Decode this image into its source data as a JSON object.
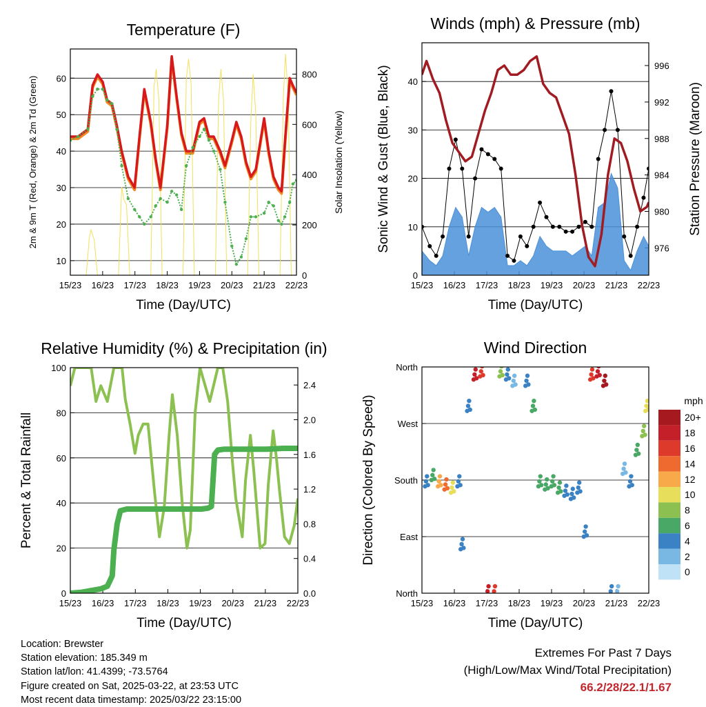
{
  "panels": {
    "temperature": {
      "title": "Temperature (F)",
      "ylabel_left": "2m & 9m T (Red, Orange) & 2m Td (Green)",
      "ylabel_right": "Solar Insolation (Yellow)",
      "xlabel": "Time (Day/UTC)",
      "yticks_left": [
        "10",
        "20",
        "30",
        "40",
        "50",
        "60"
      ],
      "yticks_right": [
        "0",
        "200",
        "400",
        "600",
        "800"
      ]
    },
    "winds": {
      "title": "Winds (mph) & Pressure (mb)",
      "ylabel_left": "Sonic Wind & Gust (Blue, Black)",
      "ylabel_right": "Station Pressure (Maroon)",
      "xlabel": "Time (Day/UTC)",
      "yticks_left": [
        "0",
        "10",
        "20",
        "30",
        "40"
      ],
      "yticks_right": [
        "976",
        "980",
        "984",
        "988",
        "992",
        "996"
      ]
    },
    "humidity": {
      "title": "Relative Humidity (%) & Precipitation (in)",
      "ylabel_left": "Percent & Total Rainfall",
      "xlabel": "Time (Day/UTC)",
      "yticks_left": [
        "0",
        "20",
        "40",
        "60",
        "80",
        "100"
      ],
      "yticks_right": [
        "0.0",
        "0.4",
        "0.8",
        "1.2",
        "1.6",
        "2.0",
        "2.4"
      ]
    },
    "direction": {
      "title": "Wind Direction",
      "ylabel_left": "Direction (Colored By Speed)",
      "xlabel": "Time (Day/UTC)",
      "yticks_left": [
        "North",
        "East",
        "South",
        "West",
        "North"
      ]
    }
  },
  "xticks": [
    "15/23",
    "16/23",
    "17/23",
    "18/23",
    "19/23",
    "20/23",
    "21/23",
    "22/23"
  ],
  "colorbar": {
    "unit": "mph",
    "labels": [
      "20+",
      "18",
      "16",
      "14",
      "12",
      "10",
      "8",
      "6",
      "4",
      "2",
      "0"
    ],
    "colors": [
      "#a6191e",
      "#c4202a",
      "#dd3a2b",
      "#ef6a2e",
      "#f8a94a",
      "#e7de5c",
      "#8cc152",
      "#4aa866",
      "#3a82c4",
      "#7ab8e4",
      "#bfe2f6"
    ]
  },
  "info": {
    "location": "Location: Brewster",
    "elevation": "Station elevation: 185.349 m",
    "latlon": "Station lat/lon: 41.4399; -73.5764",
    "created": "Figure created on Sat, 2025-03-22, at 23:53 UTC",
    "recent": "Most recent data timestamp: 2025/03/22 23:15:00"
  },
  "extremes": {
    "title": "Extremes For Past 7 Days",
    "subtitle": "(High/Low/Max Wind/Total Precipitation)",
    "values": "66.2/28/22.1/1.67"
  },
  "chart_data": [
    {
      "type": "line",
      "title": "Temperature (F)",
      "xlabel": "Time (Day/UTC)",
      "ylabel": "2m & 9m T (Red, Orange) & 2m Td (Green)",
      "y2label": "Solar Insolation (Yellow)",
      "x_range_days": [
        15.96,
        22.96
      ],
      "ylim": [
        6,
        68
      ],
      "y2lim": [
        0,
        900
      ],
      "colors": {
        "t2m": "#d7191c",
        "t9m": "#f08a24",
        "td": "#4caf50",
        "solar": "#f2e05a"
      },
      "series": [
        {
          "name": "2m T",
          "x": [
            15.96,
            16.2,
            16.5,
            16.65,
            16.8,
            16.96,
            17.1,
            17.25,
            17.4,
            17.55,
            17.75,
            17.95,
            18.1,
            18.25,
            18.45,
            18.6,
            18.75,
            18.96,
            19.1,
            19.25,
            19.4,
            19.55,
            19.75,
            19.96,
            20.1,
            20.25,
            20.4,
            20.6,
            20.75,
            20.96,
            21.1,
            21.25,
            21.4,
            21.55,
            21.7,
            21.96,
            22.1,
            22.25,
            22.4,
            22.5,
            22.6,
            22.75,
            22.85,
            22.96
          ],
          "y": [
            44,
            44,
            46,
            58,
            61,
            59,
            54,
            53,
            47,
            40,
            33,
            30,
            44,
            57,
            48,
            38,
            30,
            47,
            66,
            55,
            45,
            40,
            40,
            48,
            49,
            44,
            44,
            40,
            36,
            43,
            48,
            44,
            37,
            33,
            35,
            49,
            40,
            33,
            30,
            29,
            42,
            60,
            58,
            56
          ]
        },
        {
          "name": "2m Td",
          "x": [
            15.96,
            16.2,
            16.5,
            16.65,
            16.8,
            16.96,
            17.1,
            17.25,
            17.4,
            17.55,
            17.75,
            17.95,
            18.1,
            18.25,
            18.45,
            18.6,
            18.75,
            18.96,
            19.1,
            19.25,
            19.4,
            19.55,
            19.75,
            19.96,
            20.1,
            20.25,
            20.4,
            20.6,
            20.75,
            20.96,
            21.1,
            21.25,
            21.4,
            21.55,
            21.7,
            21.96,
            22.1,
            22.25,
            22.4,
            22.5,
            22.6,
            22.75,
            22.85,
            22.96
          ],
          "y": [
            43,
            44,
            46,
            55,
            57,
            57,
            54,
            53,
            46,
            36,
            27,
            24,
            22,
            20,
            22,
            25,
            27,
            26,
            29,
            28,
            24,
            36,
            41,
            44,
            46,
            43,
            40,
            35,
            26,
            14,
            9,
            11,
            16,
            22,
            22,
            23,
            26,
            25,
            21,
            20,
            22,
            26,
            31,
            32
          ]
        },
        {
          "name": "Solar Insolation",
          "x": [
            16.45,
            16.55,
            16.6,
            16.7,
            16.8,
            17.45,
            17.55,
            17.62,
            17.7,
            17.8,
            18.45,
            18.55,
            18.62,
            18.7,
            18.8,
            19.45,
            19.55,
            19.62,
            19.7,
            19.8,
            20.45,
            20.55,
            20.62,
            20.7,
            20.8,
            21.45,
            21.55,
            21.62,
            21.7,
            21.8,
            22.45,
            22.55,
            22.62,
            22.7,
            22.8
          ],
          "y": [
            0,
            150,
            180,
            140,
            0,
            0,
            350,
            300,
            280,
            0,
            0,
            750,
            820,
            700,
            0,
            0,
            780,
            860,
            760,
            0,
            0,
            700,
            820,
            700,
            0,
            0,
            620,
            800,
            640,
            0,
            0,
            700,
            880,
            720,
            0
          ]
        }
      ]
    },
    {
      "type": "scatter",
      "title": "Winds (mph) & Pressure (mb)",
      "xlabel": "Time (Day/UTC)",
      "ylabel": "Sonic Wind & Gust (Blue, Black)",
      "y2label": "Station Pressure (Maroon)",
      "x_range_days": [
        15.96,
        22.96
      ],
      "ylim": [
        0,
        48
      ],
      "y2lim": [
        973,
        998.5
      ],
      "colors": {
        "wind": "#4a90d9",
        "gust": "#000000",
        "pressure": "#a01c22"
      },
      "series": [
        {
          "name": "Pressure",
          "x": [
            15.96,
            16.1,
            16.2,
            16.3,
            16.5,
            16.7,
            16.9,
            17.1,
            17.3,
            17.5,
            17.7,
            17.9,
            18.1,
            18.3,
            18.5,
            18.7,
            18.9,
            19.1,
            19.3,
            19.5,
            19.7,
            19.9,
            20.1,
            20.3,
            20.5,
            20.7,
            20.9,
            21.1,
            21.3,
            21.5,
            21.7,
            21.9,
            22.1,
            22.3,
            22.5,
            22.7,
            22.9,
            22.96
          ],
          "y": [
            995,
            996.5,
            995.5,
            994.5,
            993,
            990,
            987.5,
            986.5,
            985.5,
            986,
            988.5,
            991,
            993,
            995.5,
            996,
            995,
            995,
            995.5,
            996.5,
            997,
            994,
            993,
            992.5,
            990.5,
            988.5,
            984,
            978.5,
            975,
            974,
            977.5,
            984,
            988,
            987.5,
            985.5,
            982.5,
            980,
            980.5,
            981
          ]
        },
        {
          "name": "Wind",
          "x": [
            15.96,
            16.2,
            16.4,
            16.6,
            16.8,
            17.0,
            17.2,
            17.4,
            17.6,
            17.8,
            18.0,
            18.2,
            18.4,
            18.6,
            18.8,
            19.0,
            19.2,
            19.4,
            19.6,
            19.8,
            20.0,
            20.2,
            20.4,
            20.6,
            20.8,
            21.0,
            21.2,
            21.4,
            21.6,
            21.8,
            22.0,
            22.2,
            22.4,
            22.6,
            22.8,
            22.96
          ],
          "y": [
            5,
            3,
            2,
            4,
            10,
            14,
            12,
            4,
            10,
            14,
            13,
            14,
            12,
            2,
            2,
            3,
            2,
            4,
            8,
            6,
            5,
            5,
            5,
            4,
            5,
            6,
            4,
            14,
            15,
            21,
            18,
            3,
            1,
            5,
            8,
            6
          ]
        },
        {
          "name": "Gust",
          "x": [
            15.96,
            16.2,
            16.4,
            16.6,
            16.8,
            17.0,
            17.2,
            17.4,
            17.6,
            17.8,
            18.0,
            18.2,
            18.4,
            18.6,
            18.8,
            19.0,
            19.2,
            19.4,
            19.6,
            19.8,
            20.0,
            20.2,
            20.4,
            20.6,
            20.8,
            21.0,
            21.2,
            21.4,
            21.6,
            21.8,
            22.0,
            22.2,
            22.4,
            22.6,
            22.8,
            22.96
          ],
          "y": [
            10,
            6,
            4,
            8,
            22,
            28,
            22,
            8,
            20,
            26,
            25,
            24,
            22,
            4,
            3,
            8,
            6,
            10,
            15,
            12,
            10,
            10,
            9,
            9,
            10,
            11,
            10,
            24,
            30,
            38,
            30,
            8,
            4,
            10,
            16,
            22
          ]
        }
      ]
    },
    {
      "type": "line",
      "title": "Relative Humidity (%) & Precipitation (in)",
      "xlabel": "Time (Day/UTC)",
      "ylabel": "Percent & Total Rainfall",
      "x_range_days": [
        15.96,
        22.96
      ],
      "ylim": [
        0,
        100
      ],
      "y2lim": [
        0,
        2.6
      ],
      "colors": {
        "rh": "#8cc152",
        "precip": "#4caf50"
      },
      "series": [
        {
          "name": "RH",
          "x": [
            15.96,
            16.1,
            16.3,
            16.6,
            16.75,
            16.9,
            17.1,
            17.3,
            17.55,
            17.65,
            17.8,
            17.95,
            18.05,
            18.2,
            18.35,
            18.55,
            18.7,
            18.85,
            19.0,
            19.1,
            19.25,
            19.4,
            19.55,
            19.65,
            19.8,
            19.95,
            20.05,
            20.25,
            20.5,
            20.65,
            20.8,
            20.95,
            21.05,
            21.25,
            21.35,
            21.5,
            21.6,
            21.8,
            21.95,
            22.05,
            22.2,
            22.3,
            22.4,
            22.55,
            22.7,
            22.85,
            22.96
          ],
          "y": [
            92,
            100,
            100,
            100,
            85,
            92,
            85,
            100,
            100,
            86,
            75,
            62,
            70,
            75,
            75,
            45,
            25,
            38,
            70,
            88,
            70,
            40,
            20,
            28,
            80,
            100,
            95,
            85,
            100,
            100,
            85,
            58,
            42,
            25,
            50,
            70,
            55,
            20,
            22,
            48,
            72,
            60,
            45,
            25,
            22,
            30,
            42
          ]
        },
        {
          "name": "Total Precipitation",
          "x": [
            15.96,
            16.3,
            16.6,
            16.9,
            17.1,
            17.25,
            17.3,
            17.4,
            17.5,
            17.7,
            18.0,
            18.5,
            19.0,
            19.5,
            20.0,
            20.2,
            20.3,
            20.4,
            20.5,
            20.7,
            21.0,
            21.5,
            22.0,
            22.5,
            22.96
          ],
          "y": [
            0,
            0.01,
            0.03,
            0.05,
            0.08,
            0.2,
            0.5,
            0.8,
            0.95,
            0.97,
            0.97,
            0.97,
            0.97,
            0.97,
            0.97,
            0.98,
            1.0,
            1.6,
            1.65,
            1.66,
            1.66,
            1.66,
            1.66,
            1.67,
            1.67
          ]
        }
      ]
    },
    {
      "type": "scatter",
      "title": "Wind Direction",
      "xlabel": "Time (Day/UTC)",
      "ylabel": "Direction (Colored By Speed)",
      "x_range_days": [
        15.96,
        22.96
      ],
      "ylim": [
        0,
        360
      ],
      "colorbar_unit": "mph",
      "series": [
        {
          "name": "Direction",
          "x": [
            16.1,
            16.3,
            16.5,
            16.7,
            16.9,
            17.1,
            17.2,
            17.4,
            17.6,
            17.8,
            18.0,
            18.2,
            18.4,
            18.6,
            18.8,
            19.2,
            19.4,
            19.6,
            19.8,
            20.0,
            20.2,
            20.4,
            20.6,
            20.8,
            21.0,
            21.2,
            21.4,
            21.6,
            21.8,
            22.0,
            22.2,
            22.4,
            22.6,
            22.8,
            22.9
          ],
          "y": [
            180,
            190,
            180,
            175,
            170,
            180,
            80,
            300,
            350,
            355,
            5,
            5,
            355,
            350,
            340,
            340,
            300,
            180,
            175,
            180,
            170,
            165,
            160,
            170,
            100,
            350,
            355,
            340,
            5,
            5,
            200,
            180,
            230,
            260,
            300
          ],
          "speed": [
            4,
            5,
            12,
            14,
            10,
            4,
            4,
            4,
            18,
            16,
            18,
            16,
            8,
            4,
            2,
            4,
            6,
            6,
            6,
            6,
            6,
            4,
            4,
            4,
            4,
            16,
            18,
            20,
            4,
            2,
            2,
            4,
            6,
            8,
            10
          ]
        }
      ]
    }
  ]
}
